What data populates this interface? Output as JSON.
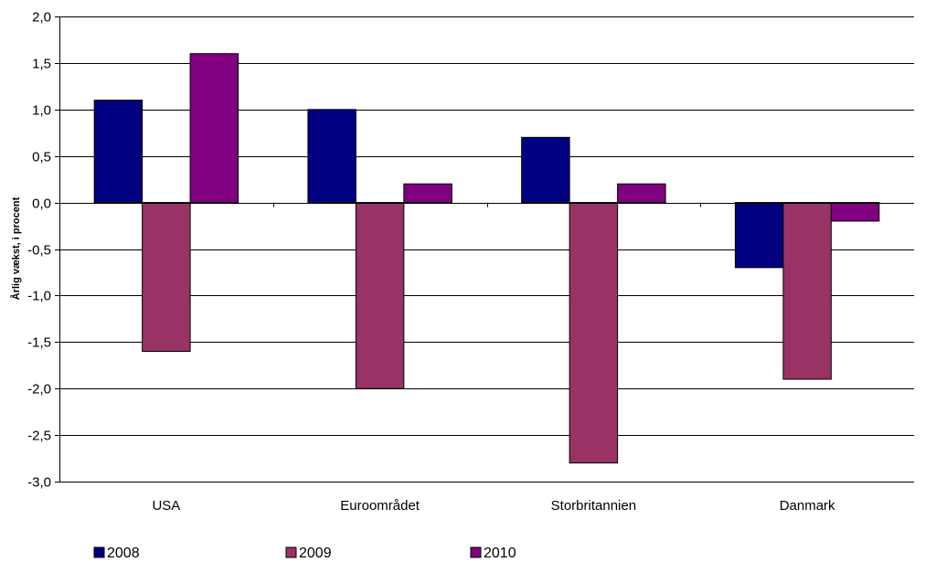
{
  "chart_data": {
    "type": "bar",
    "title": "",
    "xlabel": "",
    "ylabel": "Årlig vækst, i procent",
    "categories": [
      "USA",
      "Euroområdet",
      "Storbritannien",
      "Danmark"
    ],
    "series": [
      {
        "name": "2008",
        "color": "#000080",
        "values": [
          1.1,
          1.0,
          0.7,
          -0.7
        ]
      },
      {
        "name": "2009",
        "color": "#993366",
        "values": [
          -1.6,
          -2.0,
          -2.8,
          -1.9
        ]
      },
      {
        "name": "2010",
        "color": "#800080",
        "values": [
          1.6,
          0.2,
          0.2,
          -0.2
        ]
      }
    ],
    "ylim": [
      -3.0,
      2.0
    ],
    "yticks": [
      2.0,
      1.5,
      1.0,
      0.5,
      0.0,
      -0.5,
      -1.0,
      -1.5,
      -2.0,
      -2.5,
      -3.0
    ],
    "ytick_labels": [
      "2,0",
      "1,5",
      "1,0",
      "0,5",
      "0,0",
      "-0,5",
      "-1,0",
      "-1,5",
      "-2,0",
      "-2,5",
      "-3,0"
    ],
    "grid": true,
    "legend_position": "bottom-left"
  }
}
